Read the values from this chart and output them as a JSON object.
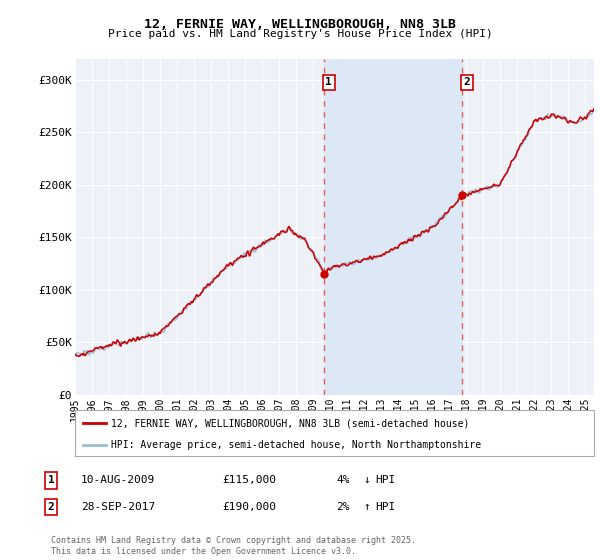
{
  "title_line1": "12, FERNIE WAY, WELLINGBOROUGH, NN8 3LB",
  "title_line2": "Price paid vs. HM Land Registry's House Price Index (HPI)",
  "ylim": [
    0,
    320000
  ],
  "yticks": [
    0,
    50000,
    100000,
    150000,
    200000,
    250000,
    300000
  ],
  "ytick_labels": [
    "£0",
    "£50K",
    "£100K",
    "£150K",
    "£200K",
    "£250K",
    "£300K"
  ],
  "background_color": "#ffffff",
  "plot_bg_color": "#eef2f8",
  "grid_color": "#ffffff",
  "line1_color": "#cc0000",
  "line2_color": "#9bbcd6",
  "marker1_x": 2009.61,
  "marker1_y": 115000,
  "marker2_x": 2017.74,
  "marker2_y": 190000,
  "vline_color": "#e06060",
  "shade_color": "#dce8f5",
  "legend_line1": "12, FERNIE WAY, WELLINGBOROUGH, NN8 3LB (semi-detached house)",
  "legend_line2": "HPI: Average price, semi-detached house, North Northamptonshire",
  "footer": "Contains HM Land Registry data © Crown copyright and database right 2025.\nThis data is licensed under the Open Government Licence v3.0.",
  "xmin": 1995,
  "xmax": 2025.5,
  "xtick_years": [
    1995,
    1996,
    1997,
    1998,
    1999,
    2000,
    2001,
    2002,
    2003,
    2004,
    2005,
    2006,
    2007,
    2008,
    2009,
    2010,
    2011,
    2012,
    2013,
    2014,
    2015,
    2016,
    2017,
    2018,
    2019,
    2020,
    2021,
    2022,
    2023,
    2024,
    2025
  ]
}
